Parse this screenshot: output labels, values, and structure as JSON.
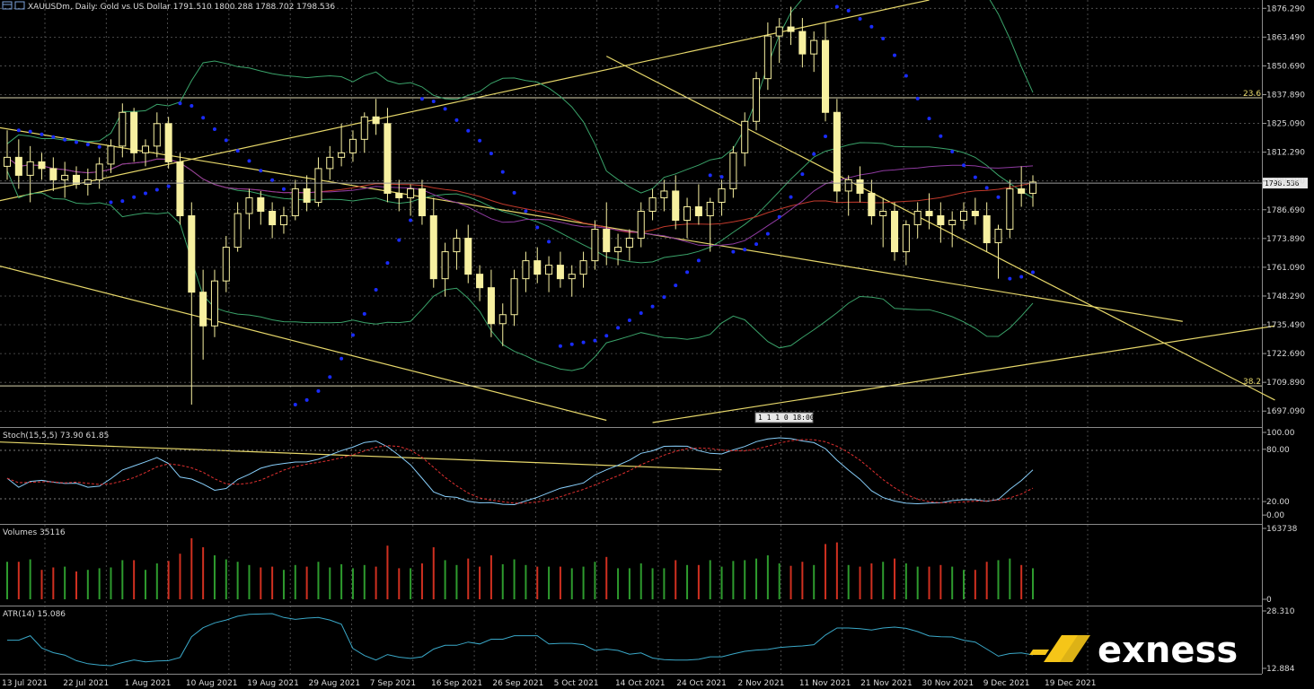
{
  "header": {
    "title": "XAUUSDm, Daily: Gold vs US Dollar  1791.510 1800.288 1788.702 1798.536",
    "icon": "chart-window-icon"
  },
  "main_panel": {
    "price_scale": [
      "1876.290",
      "1863.490",
      "1850.690",
      "1837.890",
      "1825.090",
      "1812.290",
      "1799.490",
      "1786.690",
      "1773.890",
      "1761.090",
      "1748.290",
      "1735.490",
      "1722.690",
      "1709.890",
      "1697.090"
    ],
    "current_price": "1798.536",
    "fibo_levels": [
      {
        "label": "23.6",
        "price": 1836.5
      },
      {
        "label": "38.2",
        "price": 1708.3
      }
    ],
    "period_separator_label": "1 1 1 0 18:00"
  },
  "stoch_panel": {
    "label": "Stoch(15,5,5) 73.90 61.85",
    "scale": [
      "100.00",
      "80.00",
      "20.00",
      "0.00"
    ]
  },
  "volume_panel": {
    "label": "Volumes 35116",
    "scale": [
      "163738",
      "0"
    ]
  },
  "atr_panel": {
    "label": "ATR(14) 15.086",
    "scale": [
      "28.310",
      "12.884"
    ]
  },
  "time_axis": [
    "13 Jul 2021",
    "22 Jul 2021",
    "1 Aug 2021",
    "10 Aug 2021",
    "19 Aug 2021",
    "29 Aug 2021",
    "7 Sep 2021",
    "16 Sep 2021",
    "26 Sep 2021",
    "5 Oct 2021",
    "14 Oct 2021",
    "24 Oct 2021",
    "2 Nov 2021",
    "11 Nov 2021",
    "21 Nov 2021",
    "30 Nov 2021",
    "9 Dec 2021",
    "19 Dec 2021"
  ],
  "brand": {
    "name": "exness",
    "accent": "#f5c518"
  },
  "colors": {
    "background": "#000000",
    "grid": "#5a5a5a",
    "candle": "#f7f0a0",
    "trendline": "#e6d76a",
    "bollinger": "#3aa36a",
    "ma_red": "#c0392b",
    "ma_purple": "#8e3aa0",
    "psar": "#1a2cff",
    "stoch_main": "#87cefa",
    "stoch_signal": "#e03030",
    "vol_up": "#2e9b2e",
    "vol_down": "#d03020",
    "atr": "#3aa8c8"
  },
  "chart_data": {
    "type": "candlestick",
    "symbol": "XAUUSDm",
    "timeframe": "Daily",
    "x_range": [
      "13 Jul 2021",
      "21 Dec 2021"
    ],
    "y_range": [
      1690,
      1880
    ],
    "ohlc": [
      [
        1806,
        1822,
        1800,
        1810
      ],
      [
        1810,
        1818,
        1796,
        1802
      ],
      [
        1802,
        1815,
        1790,
        1808
      ],
      [
        1808,
        1812,
        1800,
        1805
      ],
      [
        1805,
        1810,
        1795,
        1800
      ],
      [
        1800,
        1808,
        1792,
        1802
      ],
      [
        1802,
        1806,
        1796,
        1798
      ],
      [
        1798,
        1805,
        1793,
        1800
      ],
      [
        1800,
        1810,
        1796,
        1807
      ],
      [
        1807,
        1818,
        1803,
        1815
      ],
      [
        1815,
        1834,
        1810,
        1830
      ],
      [
        1830,
        1832,
        1808,
        1812
      ],
      [
        1812,
        1818,
        1806,
        1815
      ],
      [
        1815,
        1830,
        1810,
        1825
      ],
      [
        1825,
        1828,
        1805,
        1808
      ],
      [
        1808,
        1812,
        1780,
        1784
      ],
      [
        1784,
        1790,
        1700,
        1750
      ],
      [
        1750,
        1760,
        1720,
        1735
      ],
      [
        1735,
        1760,
        1730,
        1755
      ],
      [
        1755,
        1775,
        1750,
        1770
      ],
      [
        1770,
        1790,
        1768,
        1785
      ],
      [
        1785,
        1796,
        1778,
        1792
      ],
      [
        1792,
        1795,
        1780,
        1786
      ],
      [
        1786,
        1790,
        1774,
        1780
      ],
      [
        1780,
        1788,
        1776,
        1784
      ],
      [
        1784,
        1800,
        1782,
        1796
      ],
      [
        1796,
        1802,
        1786,
        1790
      ],
      [
        1790,
        1810,
        1788,
        1805
      ],
      [
        1805,
        1815,
        1800,
        1810
      ],
      [
        1810,
        1825,
        1806,
        1812
      ],
      [
        1812,
        1822,
        1808,
        1818
      ],
      [
        1818,
        1830,
        1812,
        1828
      ],
      [
        1828,
        1836,
        1820,
        1825
      ],
      [
        1825,
        1832,
        1790,
        1794
      ],
      [
        1794,
        1800,
        1786,
        1792
      ],
      [
        1792,
        1798,
        1784,
        1796
      ],
      [
        1796,
        1800,
        1780,
        1784
      ],
      [
        1784,
        1792,
        1752,
        1756
      ],
      [
        1756,
        1772,
        1748,
        1768
      ],
      [
        1768,
        1778,
        1760,
        1774
      ],
      [
        1774,
        1780,
        1754,
        1758
      ],
      [
        1758,
        1762,
        1746,
        1752
      ],
      [
        1752,
        1760,
        1730,
        1736
      ],
      [
        1736,
        1745,
        1726,
        1740
      ],
      [
        1740,
        1760,
        1735,
        1756
      ],
      [
        1756,
        1768,
        1750,
        1764
      ],
      [
        1764,
        1770,
        1754,
        1758
      ],
      [
        1758,
        1766,
        1750,
        1762
      ],
      [
        1762,
        1768,
        1752,
        1756
      ],
      [
        1756,
        1762,
        1748,
        1758
      ],
      [
        1758,
        1768,
        1752,
        1764
      ],
      [
        1764,
        1782,
        1760,
        1778
      ],
      [
        1778,
        1790,
        1762,
        1768
      ],
      [
        1768,
        1776,
        1762,
        1770
      ],
      [
        1770,
        1778,
        1764,
        1774
      ],
      [
        1774,
        1790,
        1770,
        1786
      ],
      [
        1786,
        1796,
        1782,
        1792
      ],
      [
        1792,
        1800,
        1786,
        1795
      ],
      [
        1795,
        1802,
        1778,
        1782
      ],
      [
        1782,
        1792,
        1774,
        1788
      ],
      [
        1788,
        1798,
        1780,
        1784
      ],
      [
        1784,
        1792,
        1768,
        1790
      ],
      [
        1790,
        1800,
        1784,
        1796
      ],
      [
        1796,
        1815,
        1792,
        1812
      ],
      [
        1812,
        1830,
        1806,
        1826
      ],
      [
        1826,
        1848,
        1822,
        1845
      ],
      [
        1845,
        1870,
        1840,
        1864
      ],
      [
        1864,
        1872,
        1852,
        1868
      ],
      [
        1868,
        1877,
        1860,
        1866
      ],
      [
        1866,
        1872,
        1850,
        1856
      ],
      [
        1856,
        1866,
        1848,
        1862
      ],
      [
        1862,
        1870,
        1826,
        1830
      ],
      [
        1830,
        1836,
        1790,
        1795
      ],
      [
        1795,
        1802,
        1784,
        1800
      ],
      [
        1800,
        1806,
        1790,
        1794
      ],
      [
        1794,
        1800,
        1780,
        1784
      ],
      [
        1784,
        1792,
        1770,
        1786
      ],
      [
        1786,
        1790,
        1764,
        1768
      ],
      [
        1768,
        1782,
        1762,
        1780
      ],
      [
        1780,
        1790,
        1774,
        1786
      ],
      [
        1786,
        1794,
        1778,
        1784
      ],
      [
        1784,
        1790,
        1772,
        1780
      ],
      [
        1780,
        1786,
        1770,
        1782
      ],
      [
        1782,
        1790,
        1778,
        1786
      ],
      [
        1786,
        1792,
        1780,
        1784
      ],
      [
        1784,
        1790,
        1768,
        1772
      ],
      [
        1772,
        1780,
        1756,
        1778
      ],
      [
        1778,
        1800,
        1774,
        1796
      ],
      [
        1796,
        1806,
        1788,
        1794
      ],
      [
        1794,
        1802,
        1788,
        1799
      ]
    ],
    "indicators": [
      "Bollinger Bands",
      "Moving Averages",
      "Parabolic SAR",
      "Stochastic(15,5,5)",
      "Volumes",
      "ATR(14)"
    ]
  }
}
